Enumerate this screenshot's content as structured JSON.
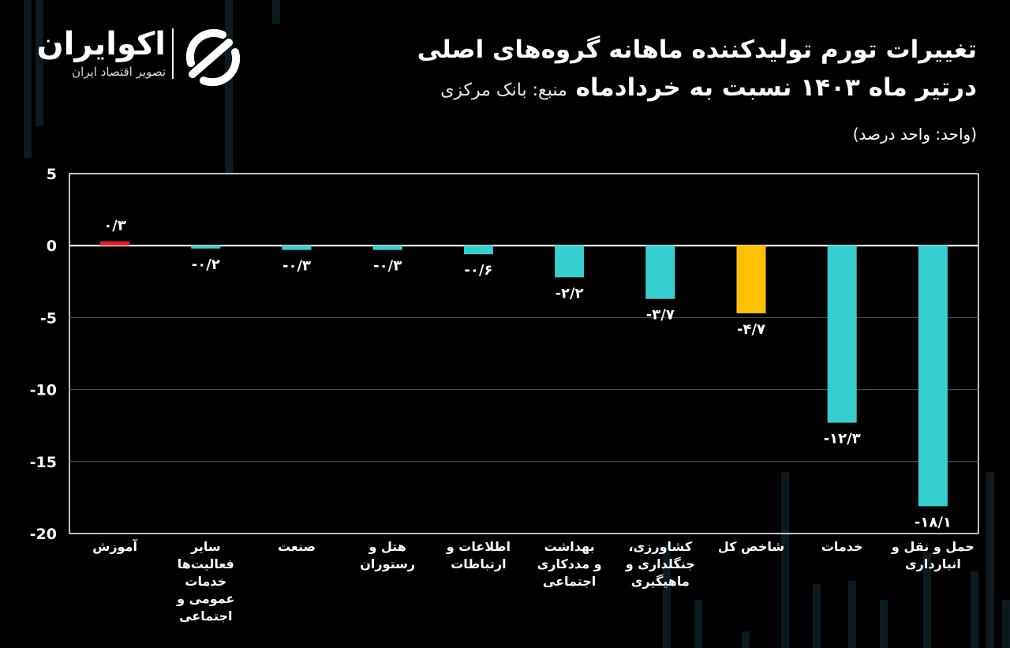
{
  "brand": {
    "name": "اکوایران",
    "tagline": "تصویر اقتصاد ایران"
  },
  "title": {
    "line1": "تغییرات تورم تولیدکننده ماهانه گروه‌های اصلی",
    "line2": "درتیر ماه ۱۴۰۳ نسبت به خردادماه",
    "source": "منبع: بانک مرکزی",
    "unit": "(واحد: واحد درصد)"
  },
  "colors": {
    "positive": "#e41e26",
    "negative": "#36cfcf",
    "total": "#ffc000",
    "background": "#000000",
    "grid": "#5a5a5a"
  },
  "chart_data": {
    "type": "bar",
    "ylim": [
      -20,
      5
    ],
    "yticks": [
      5,
      0,
      -5,
      -10,
      -15,
      -20
    ],
    "ytick_labels": [
      "5",
      "0",
      "-5",
      "-10",
      "-15",
      "-20"
    ],
    "grid": true,
    "categories": [
      [
        "آموزش"
      ],
      [
        "سایر",
        "فعالیت‌ها",
        "خدمات",
        "عمومی و",
        "اجتماعی"
      ],
      [
        "صنعت"
      ],
      [
        "هتل و",
        "رستوران"
      ],
      [
        "اطلاعات و",
        "ارتباطات"
      ],
      [
        "بهداشت",
        "و مددکاری",
        "اجتماعی"
      ],
      [
        "کشاورزی،",
        "جنگلداری و",
        "ماهیگیری"
      ],
      [
        "شاخص کل"
      ],
      [
        "خدمات"
      ],
      [
        "حمل و نقل و",
        "انبارداری"
      ]
    ],
    "values": [
      0.3,
      -0.2,
      -0.3,
      -0.3,
      -0.6,
      -2.2,
      -3.7,
      -4.7,
      -12.3,
      -18.1
    ],
    "value_labels": [
      "۰/۳",
      "-۰/۲",
      "-۰/۳",
      "-۰/۳",
      "-۰/۶",
      "-۲/۲",
      "-۳/۷",
      "-۴/۷",
      "-۱۲/۳",
      "-۱۸/۱"
    ],
    "highlight": [
      false,
      false,
      false,
      false,
      false,
      false,
      false,
      true,
      false,
      false
    ]
  }
}
